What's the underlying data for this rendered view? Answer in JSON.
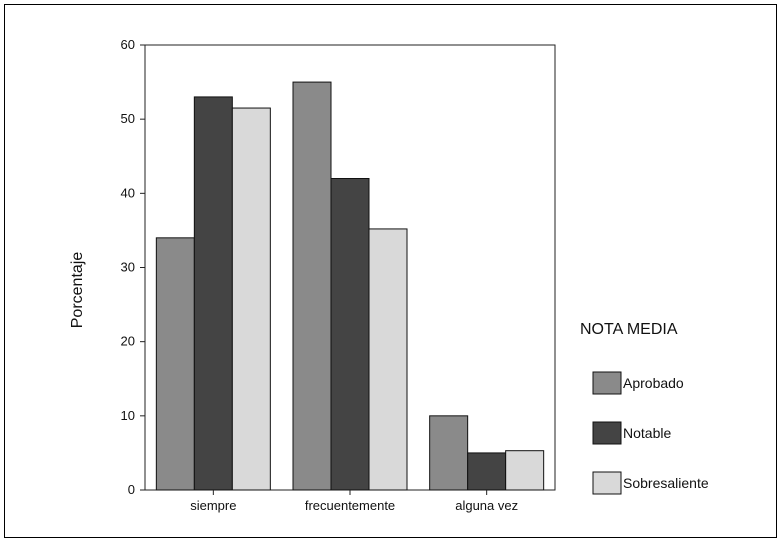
{
  "chart_data": {
    "type": "bar",
    "title": "",
    "xlabel": "",
    "ylabel": "Porcentaje",
    "categories": [
      "siempre",
      "frecuentemente",
      "alguna vez"
    ],
    "series": [
      {
        "name": "Aprobado",
        "values": [
          34,
          55,
          10
        ],
        "color": "#8a8a8a"
      },
      {
        "name": "Notable",
        "values": [
          53,
          42,
          5
        ],
        "color": "#444444"
      },
      {
        "name": "Sobresaliente",
        "values": [
          51.5,
          35.2,
          5.3
        ],
        "color": "#d9d9d9"
      }
    ],
    "ylim": [
      0,
      60
    ],
    "yticks": [
      0,
      10,
      20,
      30,
      40,
      50,
      60
    ],
    "grid": false,
    "legend": {
      "title": "NOTA MEDIA",
      "placement": "right"
    }
  }
}
